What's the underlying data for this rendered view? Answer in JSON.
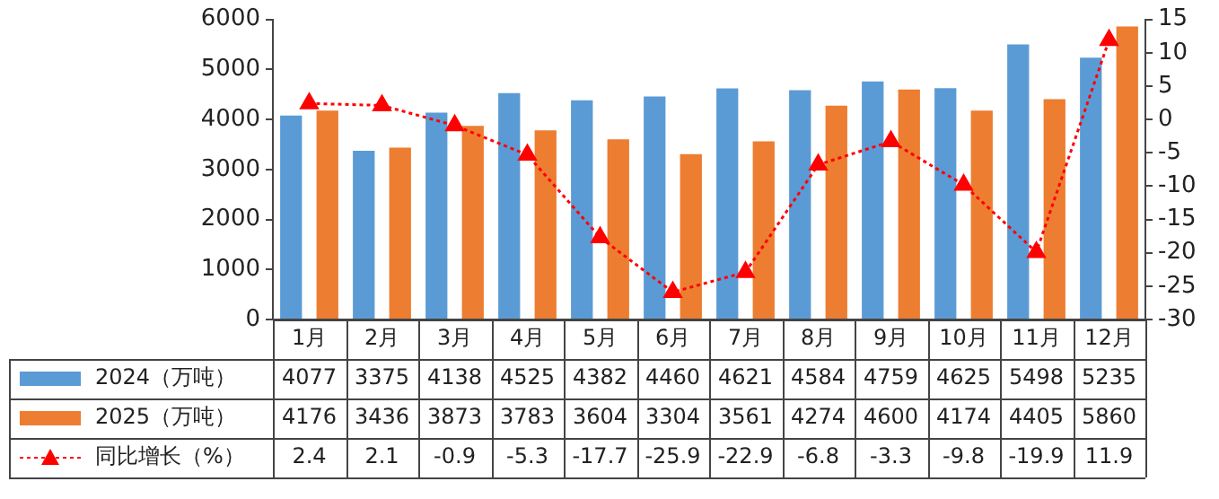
{
  "chart_data": {
    "type": "bar",
    "categories": [
      "1月",
      "2月",
      "3月",
      "4月",
      "5月",
      "6月",
      "7月",
      "8月",
      "9月",
      "10月",
      "11月",
      "12月"
    ],
    "series": [
      {
        "name": "2024（万吨）",
        "color": "#5b9bd5",
        "values": [
          4077,
          3375,
          4138,
          4525,
          4382,
          4460,
          4621,
          4584,
          4759,
          4625,
          5498,
          5235
        ]
      },
      {
        "name": "2025（万吨）",
        "color": "#ed7d31",
        "values": [
          4176,
          3436,
          3873,
          3783,
          3604,
          3304,
          3561,
          4274,
          4600,
          4174,
          4405,
          5860
        ]
      },
      {
        "name": "同比增长（%）",
        "type": "line",
        "axis": "y2",
        "color": "#ff0000",
        "marker": "triangle",
        "line_style": "dotted",
        "values": [
          2.4,
          2.1,
          -0.9,
          -5.3,
          -17.7,
          -25.9,
          -22.9,
          -6.8,
          -3.3,
          -9.8,
          -19.9,
          11.9
        ]
      }
    ],
    "ylim": [
      0,
      6000
    ],
    "yticks": [
      0,
      1000,
      2000,
      3000,
      4000,
      5000,
      6000
    ],
    "y2lim": [
      -30,
      15
    ],
    "y2ticks": [
      -30,
      -25,
      -20,
      -15,
      -10,
      -5,
      0,
      5,
      10,
      15
    ],
    "grid": false,
    "legend": "bottom left",
    "data_labels": true
  }
}
